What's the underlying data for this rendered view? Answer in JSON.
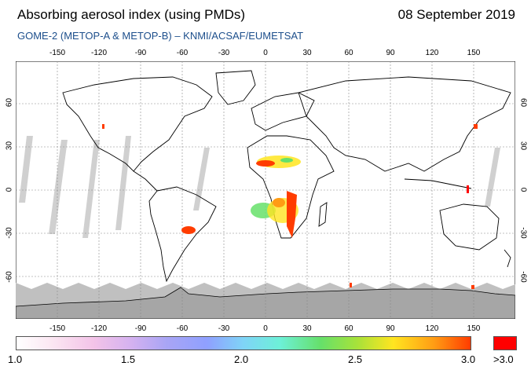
{
  "header": {
    "title": "Absorbing aerosol index (using PMDs)",
    "date": "08 September 2019",
    "subtitle": "GOME-2 (METOP-A & METOP-B)  –  KNMI/ACSAF/EUMETSAT"
  },
  "map": {
    "lon_ticks": [
      "-150",
      "-120",
      "-90",
      "-60",
      "-30",
      "0",
      "30",
      "60",
      "90",
      "120",
      "150"
    ],
    "lat_ticks": [
      "60",
      "30",
      "0",
      "-30",
      "-60"
    ],
    "colors": {
      "land_outline": "#000000",
      "grid": "#888888",
      "antarctica": "#a6a6a6",
      "no_data": "#c8c8c8"
    }
  },
  "colorbar": {
    "labels": [
      "1.0",
      "1.5",
      "2.0",
      "2.5",
      "3.0",
      ">3.0"
    ],
    "over_color": "#ff0000"
  }
}
